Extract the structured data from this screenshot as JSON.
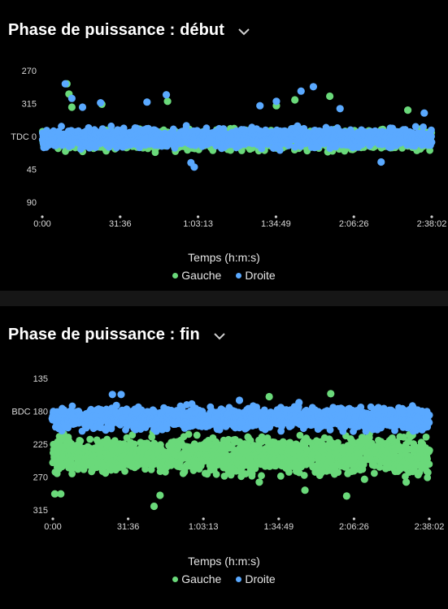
{
  "colors": {
    "gauche": "#6ad97a",
    "droite": "#5aa9ff",
    "background": "#000000"
  },
  "top_card": {
    "title": "Phase de puissance : début",
    "chevron_icon": "chevron-down-icon",
    "x_title": "Temps (h:m:s)",
    "legend": [
      "Gauche",
      "Droite"
    ]
  },
  "bottom_card": {
    "title": "Phase de puissance : fin",
    "chevron_icon": "chevron-down-icon",
    "x_title": "Temps (h:m:s)",
    "legend": [
      "Gauche",
      "Droite"
    ]
  },
  "chart_data": [
    {
      "type": "scatter",
      "title": "Phase de puissance : début",
      "xlabel": "Temps (h:m:s)",
      "ylabel": "",
      "x_ticks": [
        "0:00",
        "31:36",
        "1:03:13",
        "1:34:49",
        "2:06:26",
        "2:38:02"
      ],
      "x_range_seconds": [
        0,
        9482
      ],
      "y_ticks": [
        "270",
        "315",
        "TDC 0",
        "45",
        "90"
      ],
      "y_tick_values": [
        -90,
        -45,
        0,
        45,
        90
      ],
      "y_range": [
        -100,
        100
      ],
      "grid": false,
      "legend_position": "bottom",
      "series": [
        {
          "name": "Gauche",
          "center": 5,
          "spread": 12,
          "outliers": [
            [
              600,
              -72
            ],
            [
              650,
              -58
            ],
            [
              720,
              -40
            ],
            [
              1450,
              -44
            ],
            [
              3050,
              -48
            ],
            [
              5700,
              -42
            ],
            [
              6150,
              -50
            ],
            [
              7000,
              -55
            ],
            [
              8900,
              -36
            ]
          ]
        },
        {
          "name": "Droite",
          "center": 2,
          "spread": 11,
          "outliers": [
            [
              560,
              -72
            ],
            [
              720,
              -52
            ],
            [
              980,
              -40
            ],
            [
              1420,
              -46
            ],
            [
              2550,
              -47
            ],
            [
              3020,
              -57
            ],
            [
              3620,
              36
            ],
            [
              3700,
              42
            ],
            [
              5300,
              -42
            ],
            [
              5700,
              -48
            ],
            [
              6300,
              -62
            ],
            [
              6600,
              -68
            ],
            [
              7250,
              -38
            ],
            [
              8250,
              35
            ],
            [
              9300,
              -32
            ]
          ]
        }
      ]
    },
    {
      "type": "scatter",
      "title": "Phase de puissance : fin",
      "xlabel": "Temps (h:m:s)",
      "ylabel": "",
      "x_ticks": [
        "0:00",
        "31:36",
        "1:03:13",
        "1:34:49",
        "2:06:26",
        "2:38:02"
      ],
      "x_range_seconds": [
        0,
        9482
      ],
      "y_ticks": [
        "135",
        "BDC 180",
        "225",
        "270",
        "315"
      ],
      "y_tick_values": [
        135,
        180,
        225,
        270,
        315
      ],
      "y_range": [
        125,
        325
      ],
      "grid": false,
      "legend_position": "bottom",
      "series": [
        {
          "name": "Gauche",
          "center": 240,
          "spread": 22,
          "outliers": [
            [
              50,
              293
            ],
            [
              200,
              293
            ],
            [
              2550,
              310
            ],
            [
              2700,
              295
            ],
            [
              5200,
              277
            ],
            [
              6350,
              288
            ],
            [
              7400,
              296
            ],
            [
              7850,
              273
            ],
            [
              8900,
              277
            ],
            [
              9200,
              267
            ],
            [
              7000,
              156
            ],
            [
              5450,
              160
            ]
          ]
        },
        {
          "name": "Droite",
          "center": 190,
          "spread": 13,
          "outliers": [
            [
              1500,
              157
            ],
            [
              1720,
              157
            ],
            [
              1600,
              172
            ],
            [
              2550,
              180
            ],
            [
              2900,
              178
            ],
            [
              3500,
              170
            ],
            [
              4700,
              165
            ],
            [
              6200,
              168
            ],
            [
              8200,
              175
            ],
            [
              9300,
              180
            ]
          ]
        }
      ]
    }
  ]
}
